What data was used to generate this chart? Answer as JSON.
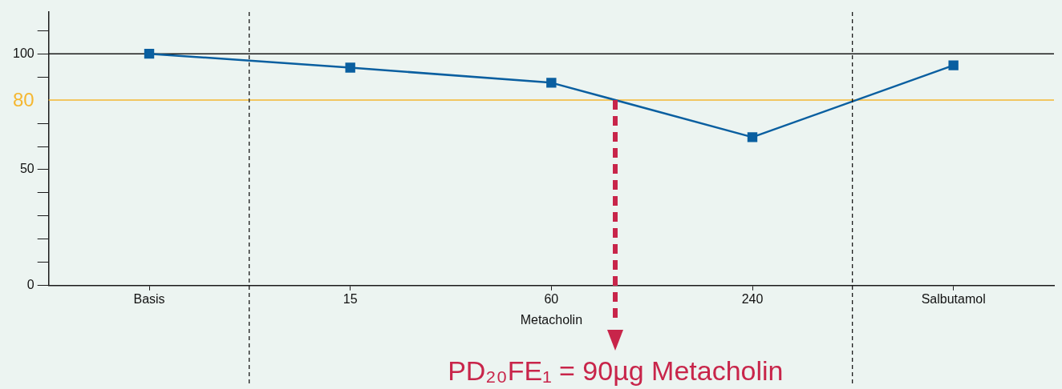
{
  "chart_data": {
    "type": "line",
    "categories": [
      "Basis",
      "15",
      "60",
      "240",
      "Salbutamol"
    ],
    "series": [
      {
        "color": "#0a5fa0",
        "values": [
          100,
          94,
          87.5,
          64,
          95
        ]
      }
    ],
    "ylim": [
      0,
      118
    ],
    "yticks": [
      0,
      {
        "value": 10,
        "label": null
      },
      {
        "value": 20,
        "label": null
      },
      {
        "value": 30,
        "label": null
      },
      {
        "value": 40,
        "label": null
      },
      50,
      {
        "value": 60,
        "label": null
      },
      {
        "value": 70,
        "label": null
      },
      {
        "value": 90,
        "label": null
      },
      100,
      {
        "value": 110,
        "label": null
      }
    ],
    "ref_lines": [
      {
        "axis": "y",
        "value": 100,
        "color": "#1a1a1a"
      },
      {
        "axis": "y",
        "value": 80,
        "color": "#f5b731",
        "label": "80"
      }
    ],
    "marker": "square",
    "line_style": "solid",
    "grid": false,
    "legend": false,
    "annotations": [
      "Metacholin",
      "PD₂₀FE₁ = 90µg Metacholin"
    ]
  }
}
